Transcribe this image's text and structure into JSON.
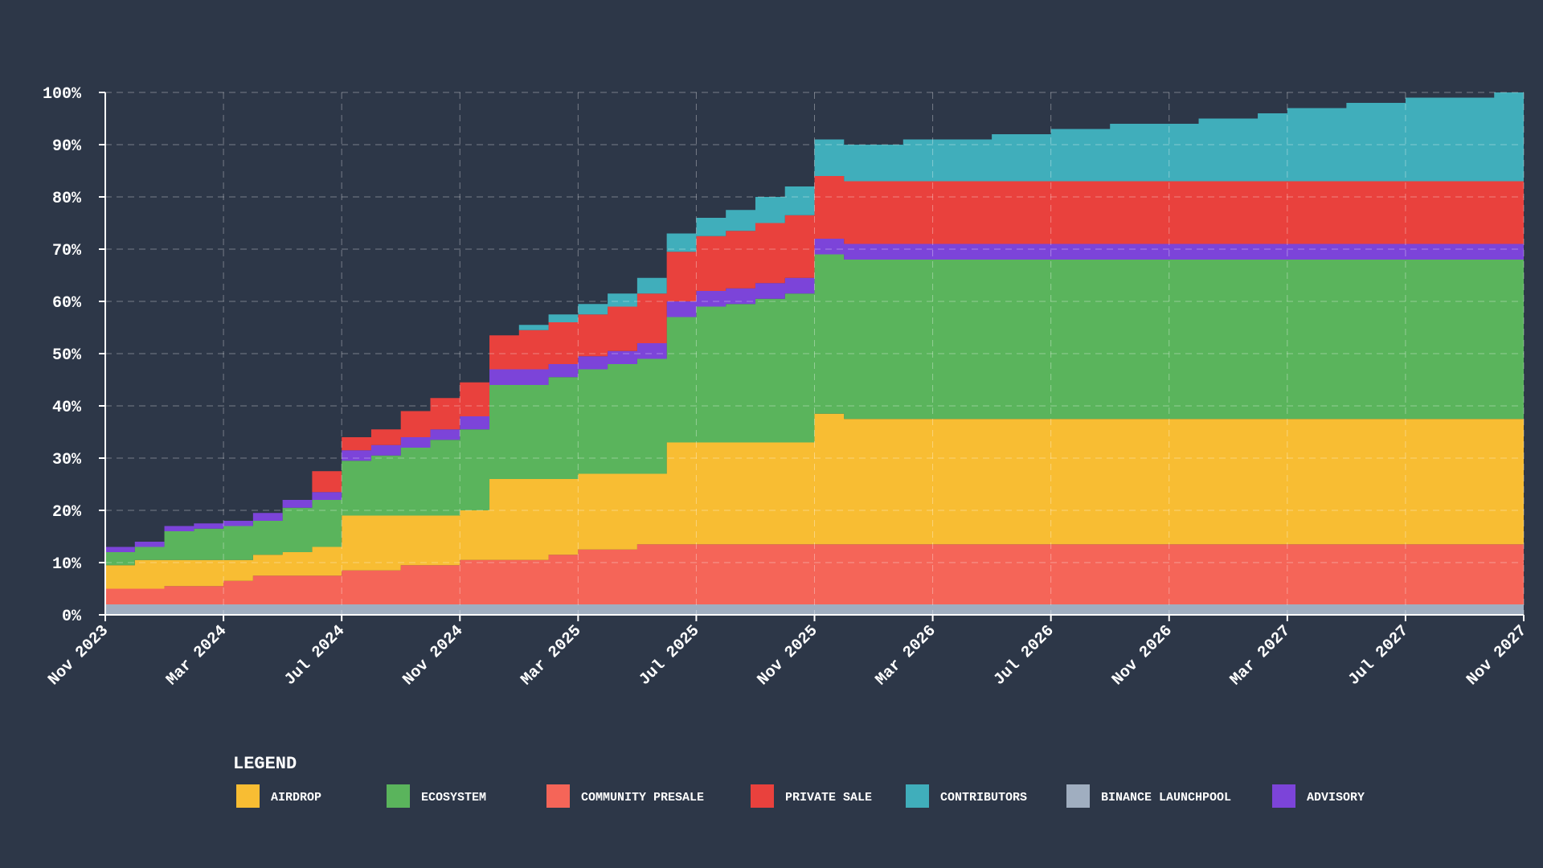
{
  "chart_data": {
    "type": "area",
    "title": "",
    "xlabel": "",
    "ylabel": "",
    "step": true,
    "x": [
      "Nov 2023",
      "Dec 2023",
      "Jan 2024",
      "Feb 2024",
      "Mar 2024",
      "Apr 2024",
      "May 2024",
      "Jun 2024",
      "Jul 2024",
      "Aug 2024",
      "Sep 2024",
      "Oct 2024",
      "Nov 2024",
      "Dec 2024",
      "Jan 2025",
      "Feb 2025",
      "Mar 2025",
      "Apr 2025",
      "May 2025",
      "Jun 2025",
      "Jul 2025",
      "Aug 2025",
      "Sep 2025",
      "Oct 2025",
      "Nov 2025",
      "Dec 2025",
      "Jan 2026",
      "Feb 2026",
      "Mar 2026",
      "Apr 2026",
      "May 2026",
      "Jun 2026",
      "Jul 2026",
      "Aug 2026",
      "Sep 2026",
      "Oct 2026",
      "Nov 2026",
      "Dec 2026",
      "Jan 2027",
      "Feb 2027",
      "Mar 2027",
      "Apr 2027",
      "May 2027",
      "Jun 2027",
      "Jul 2027",
      "Aug 2027",
      "Sep 2027",
      "Oct 2027",
      "Nov 2027"
    ],
    "x_ticks": [
      "Nov 2023",
      "Mar 2024",
      "Jul 2024",
      "Nov 2024",
      "Mar 2025",
      "Jul 2025",
      "Nov 2025",
      "Mar 2026",
      "Jul 2026",
      "Nov 2026",
      "Mar 2027",
      "Jul 2027",
      "Nov 2027"
    ],
    "y_ticks": [
      "0%",
      "10%",
      "20%",
      "30%",
      "40%",
      "50%",
      "60%",
      "70%",
      "80%",
      "90%",
      "100%"
    ],
    "ylim": [
      0,
      100
    ],
    "grid": true,
    "legend_position": "bottom",
    "stack_order": [
      "BINANCE LAUNCHPOOL",
      "COMMUNITY PRESALE",
      "AIRDROP",
      "ECOSYSTEM",
      "ADVISORY",
      "PRIVATE SALE",
      "CONTRIBUTORS"
    ],
    "series": [
      {
        "name": "BINANCE LAUNCHPOOL",
        "color": "#a0aec0",
        "values": [
          2,
          2,
          2,
          2,
          2,
          2,
          2,
          2,
          2,
          2,
          2,
          2,
          2,
          2,
          2,
          2,
          2,
          2,
          2,
          2,
          2,
          2,
          2,
          2,
          2,
          2,
          2,
          2,
          2,
          2,
          2,
          2,
          2,
          2,
          2,
          2,
          2,
          2,
          2,
          2,
          2,
          2,
          2,
          2,
          2,
          2,
          2,
          2,
          2
        ]
      },
      {
        "name": "COMMUNITY PRESALE",
        "color": "#f56558",
        "values": [
          3,
          3,
          3.5,
          3.5,
          4.5,
          5.5,
          5.5,
          5.5,
          6.5,
          6.5,
          7.5,
          7.5,
          8.5,
          8.5,
          8.5,
          9.5,
          10.5,
          10.5,
          11.5,
          11.5,
          11.5,
          11.5,
          11.5,
          11.5,
          11.5,
          11.5,
          11.5,
          11.5,
          11.5,
          11.5,
          11.5,
          11.5,
          11.5,
          11.5,
          11.5,
          11.5,
          11.5,
          11.5,
          11.5,
          11.5,
          11.5,
          11.5,
          11.5,
          11.5,
          11.5,
          11.5,
          11.5,
          11.5,
          11.5
        ]
      },
      {
        "name": "AIRDROP",
        "color": "#f8bd33",
        "values": [
          4.5,
          5.5,
          5,
          5,
          4,
          4,
          4.5,
          5.5,
          10.5,
          10.5,
          9.5,
          9.5,
          9.5,
          15.5,
          15.5,
          14.5,
          14.5,
          14.5,
          13.5,
          19.5,
          19.5,
          19.5,
          19.5,
          19.5,
          25,
          24,
          24,
          24,
          24,
          24,
          24,
          24,
          24,
          24,
          24,
          24,
          24,
          24,
          24,
          24,
          24,
          24,
          24,
          24,
          24,
          24,
          24,
          24,
          24
        ]
      },
      {
        "name": "ECOSYSTEM",
        "color": "#5ab45c",
        "values": [
          2.5,
          2.5,
          5.5,
          6,
          6.5,
          6.5,
          8.5,
          9,
          10.5,
          11.5,
          13,
          14.5,
          15.5,
          18,
          18,
          19.5,
          20,
          21,
          22,
          24,
          26,
          26.5,
          27.5,
          28.5,
          30.5,
          30.5,
          30.5,
          30.5,
          30.5,
          30.5,
          30.5,
          30.5,
          30.5,
          30.5,
          30.5,
          30.5,
          30.5,
          30.5,
          30.5,
          30.5,
          30.5,
          30.5,
          30.5,
          30.5,
          30.5,
          30.5,
          30.5,
          30.5,
          30.5
        ]
      },
      {
        "name": "ADVISORY",
        "color": "#7c44d9",
        "values": [
          1,
          1,
          1,
          1,
          1,
          1.5,
          1.5,
          1.5,
          2,
          2,
          2,
          2,
          2.5,
          3,
          3,
          2.5,
          2.5,
          2.5,
          3,
          3,
          3,
          3,
          3,
          3,
          3,
          3,
          3,
          3,
          3,
          3,
          3,
          3,
          3,
          3,
          3,
          3,
          3,
          3,
          3,
          3,
          3,
          3,
          3,
          3,
          3,
          3,
          3,
          3,
          3
        ]
      },
      {
        "name": "PRIVATE SALE",
        "color": "#e9413d",
        "values": [
          0,
          0,
          0,
          0,
          0,
          0,
          0,
          4,
          2.5,
          3,
          5,
          6,
          6.5,
          6.5,
          7.5,
          8,
          8,
          8.5,
          9.5,
          9.5,
          10.5,
          11,
          11.5,
          12,
          12,
          12,
          12,
          12,
          12,
          12,
          12,
          12,
          12,
          12,
          12,
          12,
          12,
          12,
          12,
          12,
          12,
          12,
          12,
          12,
          12,
          12,
          12,
          12,
          12
        ]
      },
      {
        "name": "CONTRIBUTORS",
        "color": "#40aebb",
        "values": [
          0,
          0,
          0,
          0,
          0,
          0,
          0,
          0,
          0,
          0,
          0,
          0,
          0,
          0,
          1,
          1.5,
          2,
          2.5,
          3,
          3.5,
          3.5,
          4,
          5,
          5.5,
          7,
          7,
          7,
          8,
          8,
          8,
          9,
          9,
          10,
          10,
          11,
          11,
          11,
          12,
          12,
          13,
          14,
          14,
          15,
          15,
          16,
          16,
          16,
          17,
          17
        ]
      }
    ]
  },
  "legend": {
    "title": "LEGEND",
    "items": [
      {
        "label": "AIRDROP",
        "color": "#f8bd33"
      },
      {
        "label": "ECOSYSTEM",
        "color": "#5ab45c"
      },
      {
        "label": "COMMUNITY PRESALE",
        "color": "#f56558"
      },
      {
        "label": "PRIVATE SALE",
        "color": "#e9413d"
      },
      {
        "label": "CONTRIBUTORS",
        "color": "#40aebb"
      },
      {
        "label": "BINANCE LAUNCHPOOL",
        "color": "#a0aec0"
      },
      {
        "label": "ADVISORY",
        "color": "#7c44d9"
      }
    ]
  }
}
